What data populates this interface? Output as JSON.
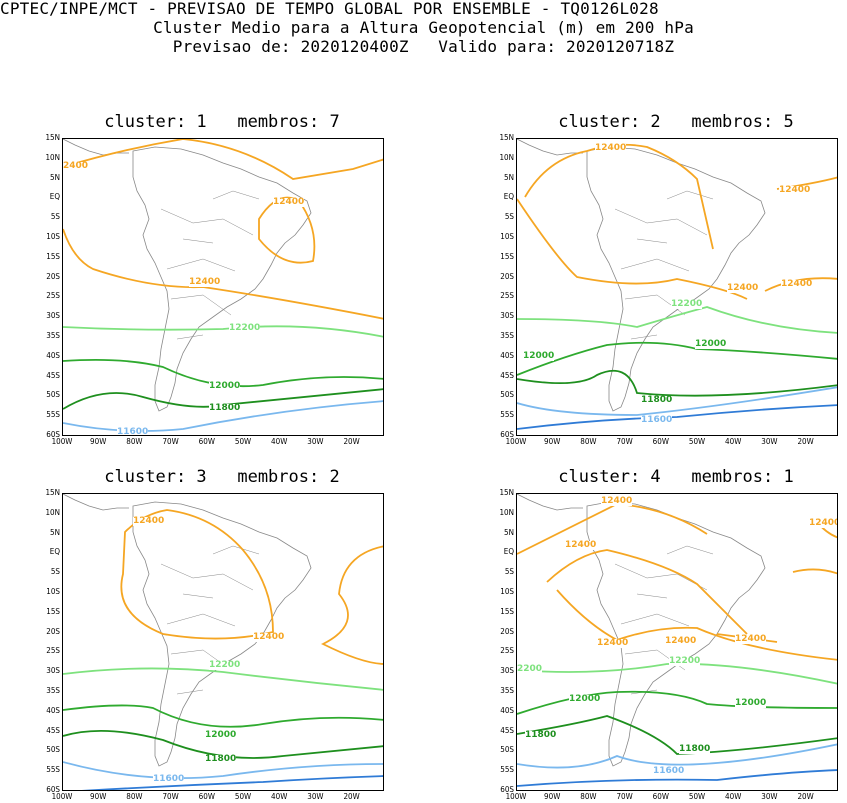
{
  "header": {
    "line1": "CPTEC/INPE/MCT - PREVISAO DE TEMPO GLOBAL POR ENSEMBLE - TQ0126L028",
    "line2": "Cluster Medio para a Altura Geopotencial (m) em 200 hPa",
    "line3": "Previsao de: 2020120400Z   Valido para: 2020120718Z"
  },
  "colors": {
    "c12400": "#f5a623",
    "c12200": "#7ee27e",
    "c12000": "#2faa2f",
    "c11800": "#1e8f1e",
    "c11600": "#7ab8ee",
    "c11400": "#2f7bd6",
    "coast": "#888888"
  },
  "lat_labels": [
    "15N",
    "10N",
    "5N",
    "EQ",
    "5S",
    "10S",
    "15S",
    "20S",
    "25S",
    "30S",
    "35S",
    "40S",
    "45S",
    "50S",
    "55S",
    "60S"
  ],
  "lon_labels": [
    "100W",
    "90W",
    "80W",
    "70W",
    "60W",
    "50W",
    "40W",
    "30W",
    "20W"
  ],
  "panels": [
    {
      "title": "cluster: 1   membros: 7",
      "labels": [
        [
          "2400"
        ],
        [
          "12400"
        ],
        [
          "12400"
        ],
        [
          "12200"
        ],
        [
          "12000"
        ],
        [
          "11800"
        ],
        [
          "11600"
        ]
      ]
    },
    {
      "title": "cluster: 2   membros: 5",
      "labels": [
        [
          "12400"
        ],
        [
          "12400"
        ],
        [
          "12400"
        ],
        [
          "12400"
        ],
        [
          "12200"
        ],
        [
          "12000"
        ],
        [
          "12000"
        ],
        [
          "11800"
        ],
        [
          "11600"
        ]
      ]
    },
    {
      "title": "cluster: 3   membros: 2",
      "labels": [
        [
          "12400"
        ],
        [
          "12400"
        ],
        [
          "12200"
        ],
        [
          "12000"
        ],
        [
          "11800"
        ],
        [
          "11600"
        ]
      ]
    },
    {
      "title": "cluster: 4   membros: 1",
      "labels": [
        [
          "12400"
        ],
        [
          "12400"
        ],
        [
          "12400"
        ],
        [
          "12400"
        ],
        [
          "12400"
        ],
        [
          "12400"
        ],
        [
          "2200"
        ],
        [
          "12200"
        ],
        [
          "12000"
        ],
        [
          "12000"
        ],
        [
          "11800"
        ],
        [
          "11800"
        ],
        [
          "11600"
        ]
      ]
    }
  ]
}
